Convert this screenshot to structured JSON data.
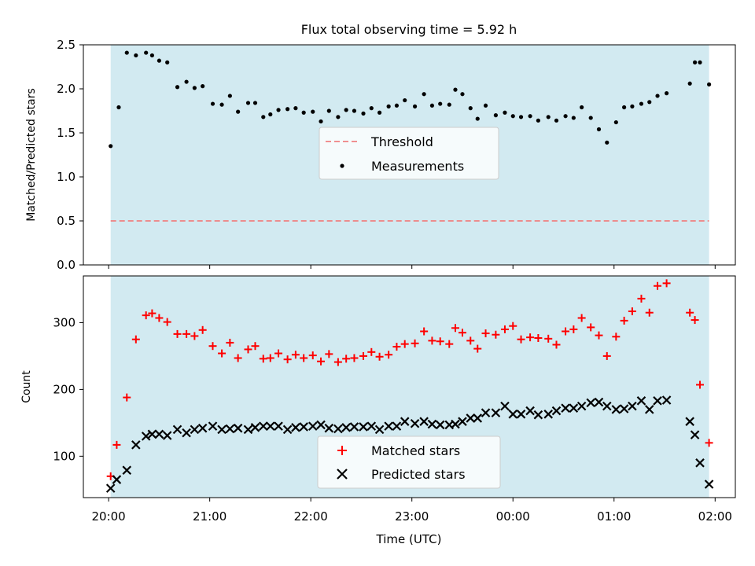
{
  "title": "Flux total observing time = 5.92 h",
  "xlabel": "Time (UTC)",
  "x_ticks": [
    "20:00",
    "21:00",
    "22:00",
    "23:00",
    "00:00",
    "01:00",
    "02:00"
  ],
  "x_range_hours": [
    19.75,
    26.2
  ],
  "observing_span_hours": [
    20.02,
    25.94
  ],
  "colors": {
    "span_fill": "#add8e6",
    "threshold": "#f08080",
    "matched": "#ff0000",
    "predicted": "#000000",
    "measurements": "#000000"
  },
  "chart_data": [
    {
      "type": "scatter",
      "ylabel": "Matched/Predicted stars",
      "ylim": [
        0,
        2.5
      ],
      "y_ticks": [
        "0.0",
        "0.5",
        "1.0",
        "1.5",
        "2.0",
        "2.5"
      ],
      "legend_position": "center",
      "threshold": {
        "name": "Threshold",
        "value": 0.5
      },
      "measurements": {
        "name": "Measurements",
        "x": [
          20.02,
          20.1,
          20.18,
          20.27,
          20.37,
          20.43,
          20.5,
          20.58,
          20.68,
          20.77,
          20.85,
          20.93,
          21.03,
          21.12,
          21.2,
          21.28,
          21.38,
          21.45,
          21.53,
          21.6,
          21.68,
          21.77,
          21.85,
          21.93,
          22.02,
          22.1,
          22.18,
          22.27,
          22.35,
          22.43,
          22.52,
          22.6,
          22.68,
          22.77,
          22.85,
          22.93,
          23.03,
          23.12,
          23.2,
          23.28,
          23.37,
          23.43,
          23.5,
          23.58,
          23.65,
          23.73,
          23.83,
          23.92,
          24.0,
          24.08,
          24.17,
          24.25,
          24.35,
          24.43,
          24.52,
          24.6,
          24.68,
          24.77,
          24.85,
          24.93,
          25.02,
          25.1,
          25.18,
          25.27,
          25.35,
          25.43,
          25.52,
          25.75,
          25.8,
          25.85,
          25.94
        ],
        "y": [
          1.35,
          1.79,
          2.41,
          2.38,
          2.41,
          2.38,
          2.32,
          2.3,
          2.02,
          2.08,
          2.01,
          2.03,
          1.83,
          1.82,
          1.92,
          1.74,
          1.84,
          1.84,
          1.68,
          1.71,
          1.76,
          1.77,
          1.78,
          1.73,
          1.74,
          1.63,
          1.75,
          1.68,
          1.76,
          1.75,
          1.72,
          1.78,
          1.73,
          1.8,
          1.81,
          1.87,
          1.8,
          1.94,
          1.81,
          1.83,
          1.82,
          1.99,
          1.94,
          1.78,
          1.66,
          1.81,
          1.7,
          1.73,
          1.69,
          1.68,
          1.69,
          1.64,
          1.68,
          1.64,
          1.69,
          1.67,
          1.79,
          1.67,
          1.54,
          1.39,
          1.62,
          1.79,
          1.8,
          1.83,
          1.85,
          1.92,
          1.95,
          2.06,
          2.3,
          2.3,
          2.05
        ]
      }
    },
    {
      "type": "scatter",
      "ylabel": "Count",
      "ylim": [
        38,
        370
      ],
      "y_ticks": [
        100,
        200,
        300
      ],
      "legend_position": "lower center",
      "series": [
        {
          "name": "Matched stars",
          "marker": "plus",
          "x": [
            20.02,
            20.08,
            20.18,
            20.27,
            20.37,
            20.43,
            20.5,
            20.58,
            20.68,
            20.77,
            20.85,
            20.93,
            21.03,
            21.12,
            21.2,
            21.28,
            21.38,
            21.45,
            21.53,
            21.6,
            21.68,
            21.77,
            21.85,
            21.93,
            22.02,
            22.1,
            22.18,
            22.27,
            22.35,
            22.43,
            22.52,
            22.6,
            22.68,
            22.77,
            22.85,
            22.93,
            23.03,
            23.12,
            23.2,
            23.28,
            23.37,
            23.43,
            23.5,
            23.58,
            23.65,
            23.73,
            23.83,
            23.92,
            24.0,
            24.08,
            24.17,
            24.25,
            24.35,
            24.43,
            24.52,
            24.6,
            24.68,
            24.77,
            24.85,
            24.93,
            25.02,
            25.1,
            25.18,
            25.27,
            25.35,
            25.43,
            25.52,
            25.75,
            25.8,
            25.85,
            25.94
          ],
          "y": [
            70,
            117,
            188,
            275,
            311,
            314,
            307,
            301,
            283,
            283,
            280,
            289,
            265,
            254,
            270,
            247,
            260,
            265,
            246,
            247,
            254,
            245,
            252,
            247,
            251,
            242,
            253,
            241,
            246,
            247,
            250,
            256,
            249,
            252,
            264,
            268,
            269,
            287,
            273,
            272,
            268,
            292,
            285,
            273,
            261,
            284,
            282,
            290,
            295,
            275,
            278,
            277,
            276,
            267,
            287,
            290,
            307,
            293,
            281,
            250,
            279,
            303,
            317,
            336,
            315,
            355,
            359,
            315,
            304,
            207,
            120
          ]
        },
        {
          "name": "Predicted stars",
          "marker": "x",
          "x": [
            20.02,
            20.08,
            20.18,
            20.27,
            20.37,
            20.43,
            20.5,
            20.58,
            20.68,
            20.77,
            20.85,
            20.93,
            21.03,
            21.12,
            21.2,
            21.28,
            21.38,
            21.45,
            21.53,
            21.6,
            21.68,
            21.77,
            21.85,
            21.93,
            22.02,
            22.1,
            22.18,
            22.27,
            22.35,
            22.43,
            22.52,
            22.6,
            22.68,
            22.77,
            22.85,
            22.93,
            23.03,
            23.12,
            23.2,
            23.28,
            23.37,
            23.43,
            23.5,
            23.58,
            23.65,
            23.73,
            23.83,
            23.92,
            24.0,
            24.08,
            24.17,
            24.25,
            24.35,
            24.43,
            24.52,
            24.6,
            24.68,
            24.77,
            24.85,
            24.93,
            25.02,
            25.1,
            25.18,
            25.27,
            25.35,
            25.43,
            25.52,
            25.75,
            25.8,
            25.85,
            25.94
          ],
          "y": [
            52,
            65,
            79,
            117,
            130,
            133,
            133,
            131,
            140,
            135,
            140,
            142,
            145,
            140,
            141,
            142,
            140,
            143,
            145,
            145,
            145,
            140,
            143,
            144,
            145,
            147,
            142,
            141,
            143,
            144,
            144,
            145,
            140,
            145,
            145,
            152,
            149,
            152,
            148,
            147,
            147,
            148,
            152,
            157,
            157,
            165,
            165,
            175,
            163,
            163,
            168,
            162,
            163,
            168,
            172,
            172,
            175,
            180,
            181,
            175,
            170,
            171,
            175,
            183,
            170,
            183,
            184,
            152,
            132,
            90,
            58
          ]
        }
      ]
    }
  ]
}
